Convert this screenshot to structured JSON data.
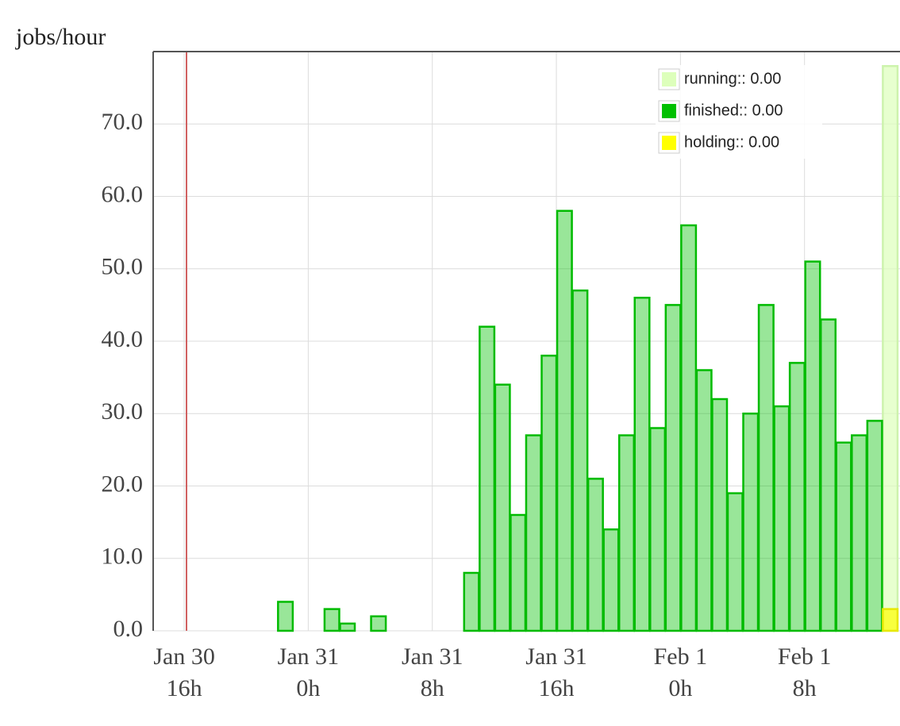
{
  "chart_data": {
    "type": "bar",
    "ylabel": "jobs/hour",
    "categories": [
      null,
      null,
      "Jan 30\n16h",
      null,
      null,
      null,
      null,
      null,
      null,
      null,
      "Jan 31\n0h",
      null,
      null,
      null,
      null,
      null,
      null,
      null,
      "Jan 31\n8h",
      null,
      null,
      null,
      null,
      null,
      null,
      null,
      "Jan 31\n16h",
      null,
      null,
      null,
      null,
      null,
      null,
      null,
      "Feb 1\n0h",
      null,
      null,
      null,
      null,
      null,
      null,
      null,
      "Feb 1\n8h",
      null,
      null,
      null,
      null,
      null
    ],
    "series": [
      {
        "name": "running:: 0.00",
        "color": "#ddffbb",
        "values": [
          0,
          0,
          0,
          0,
          0,
          0,
          0,
          0,
          0,
          0,
          0,
          0,
          0,
          0,
          0,
          0,
          0,
          0,
          0,
          0,
          0,
          0,
          0,
          0,
          0,
          0,
          0,
          0,
          0,
          0,
          0,
          0,
          0,
          0,
          0,
          0,
          0,
          0,
          0,
          0,
          0,
          0,
          0,
          0,
          0,
          0,
          0,
          78
        ]
      },
      {
        "name": "finished:: 0.00",
        "color": "#00c000",
        "values": [
          0,
          0,
          0,
          0,
          0,
          0,
          0,
          0,
          4,
          0,
          0,
          3,
          1,
          0,
          2,
          0,
          0,
          0,
          0,
          0,
          8,
          42,
          34,
          16,
          27,
          38,
          58,
          47,
          21,
          14,
          27,
          46,
          28,
          45,
          56,
          36,
          32,
          19,
          30,
          45,
          31,
          37,
          51,
          43,
          26,
          27,
          29,
          0
        ]
      },
      {
        "name": "holding:: 0.00",
        "color": "#ffff00",
        "values": [
          0,
          0,
          0,
          0,
          0,
          0,
          0,
          0,
          0,
          0,
          0,
          0,
          0,
          0,
          0,
          0,
          0,
          0,
          0,
          0,
          0,
          0,
          0,
          0,
          0,
          0,
          0,
          0,
          0,
          0,
          0,
          0,
          0,
          0,
          0,
          0,
          0,
          0,
          0,
          0,
          0,
          0,
          0,
          0,
          0,
          0,
          0,
          3
        ]
      }
    ],
    "ylim": [
      0,
      80
    ],
    "yticks": [
      {
        "value": 0,
        "label": "0.0"
      },
      {
        "value": 10,
        "label": "10.0"
      },
      {
        "value": 20,
        "label": "20.0"
      },
      {
        "value": 30,
        "label": "30.0"
      },
      {
        "value": 40,
        "label": "40.0"
      },
      {
        "value": 50,
        "label": "50.0"
      },
      {
        "value": 60,
        "label": "60.0"
      },
      {
        "value": 70,
        "label": "70.0"
      }
    ],
    "grid": true,
    "legend": "top-right"
  }
}
